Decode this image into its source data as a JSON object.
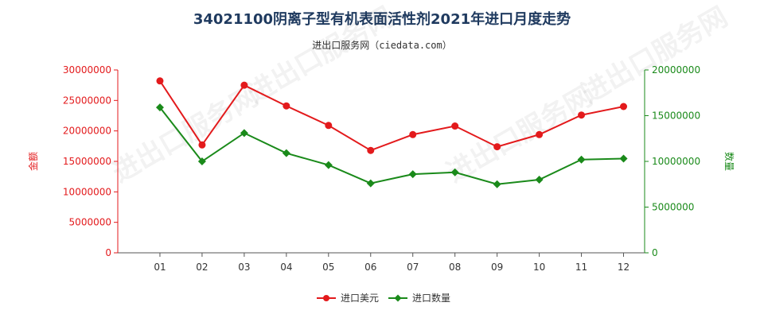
{
  "chart_data": {
    "type": "line",
    "title": "34021100阴离子型有机表面活性剂2021年进口月度走势",
    "subtitle": "进出口服务网（ciedata.com）",
    "watermark": "进出口服务网",
    "categories": [
      "01",
      "02",
      "03",
      "04",
      "05",
      "06",
      "07",
      "08",
      "09",
      "10",
      "11",
      "12"
    ],
    "y_left": {
      "label": "金额",
      "ylim": [
        0,
        30000000
      ],
      "ticks": [
        "0",
        "5000000",
        "10000000",
        "15000000",
        "20000000",
        "25000000",
        "30000000"
      ],
      "color": "#e31a1c"
    },
    "y_right": {
      "label": "数量",
      "ylim": [
        0,
        20000000
      ],
      "ticks": [
        "0",
        "5000000",
        "10000000",
        "15000000",
        "20000000"
      ],
      "color": "#1a8a1a"
    },
    "series": [
      {
        "name": "进口美元",
        "axis": "left",
        "color": "#e31a1c",
        "values": [
          28200000,
          17700000,
          27500000,
          24100000,
          20900000,
          16800000,
          19400000,
          20800000,
          17400000,
          19400000,
          22600000,
          24000000
        ]
      },
      {
        "name": "进口数量",
        "axis": "right",
        "color": "#1a8a1a",
        "values": [
          15900000,
          10000000,
          13100000,
          10900000,
          9600000,
          7600000,
          8600000,
          8800000,
          7500000,
          8000000,
          10200000,
          10300000
        ]
      }
    ],
    "grid": false,
    "legend": "bottom-center"
  }
}
